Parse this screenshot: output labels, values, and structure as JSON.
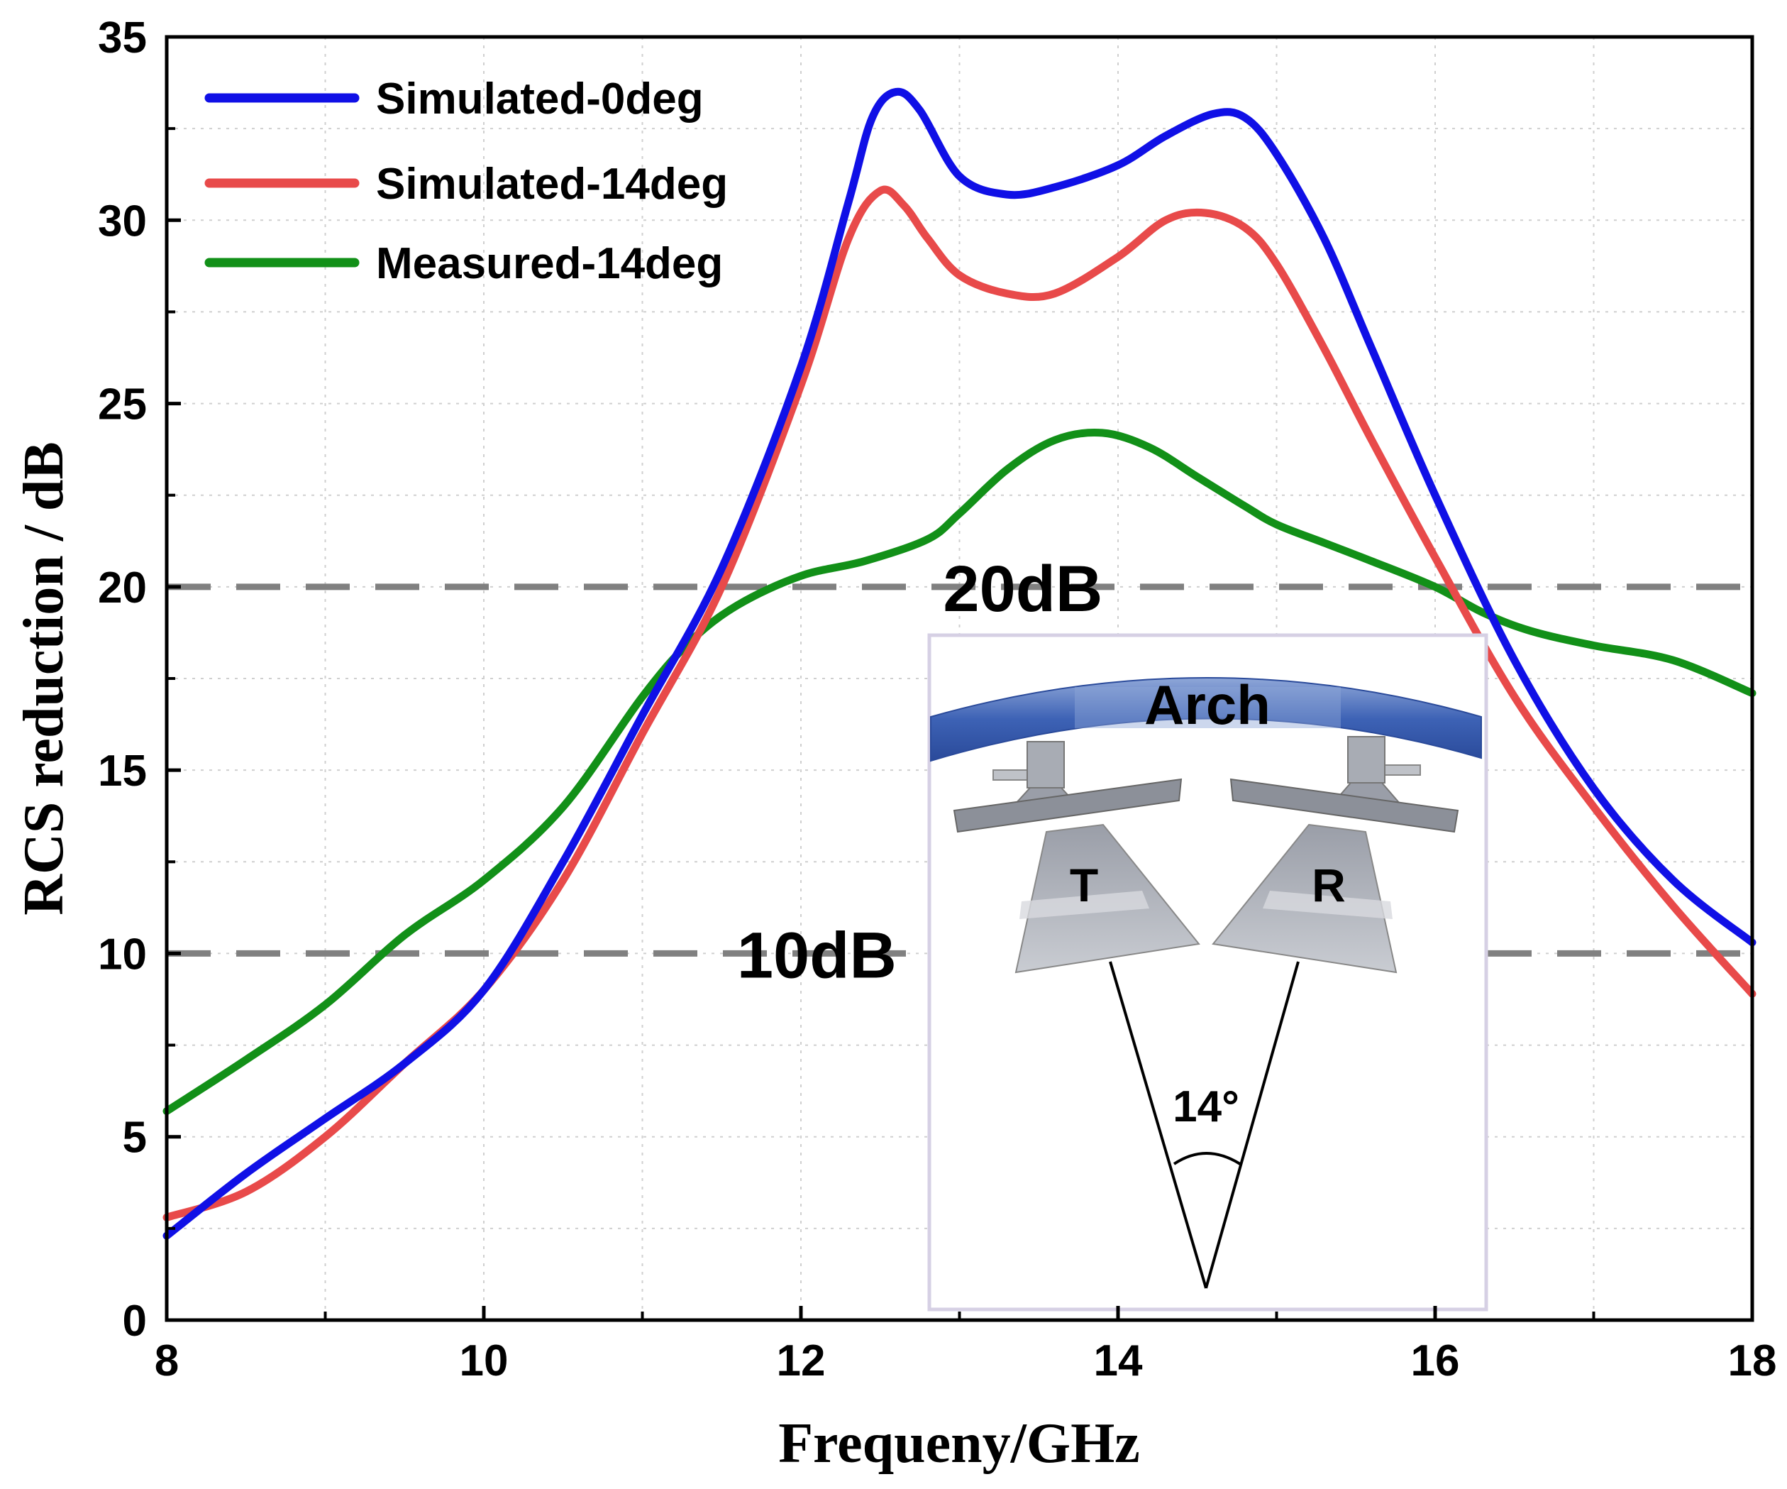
{
  "chart_data": {
    "type": "line",
    "xlabel": "Frequeny/GHz",
    "ylabel": "RCS reduction / dB",
    "xlim": [
      8,
      18
    ],
    "ylim": [
      0,
      35
    ],
    "xticks": [
      8,
      10,
      12,
      14,
      16,
      18
    ],
    "yticks": [
      0,
      5,
      10,
      15,
      20,
      25,
      30,
      35
    ],
    "grid": true,
    "legend_position": "top-left",
    "series": [
      {
        "name": "Simulated-0deg",
        "color": "#1010e6",
        "x": [
          8,
          8.5,
          9,
          9.5,
          10,
          10.5,
          11,
          11.5,
          12,
          12.3,
          12.45,
          12.6,
          12.75,
          13,
          13.3,
          13.6,
          14,
          14.3,
          14.6,
          14.8,
          15,
          15.3,
          15.6,
          16,
          16.5,
          17,
          17.5,
          18
        ],
        "y": [
          2.3,
          4,
          5.5,
          7,
          9,
          12.5,
          16.5,
          20.5,
          26,
          30.5,
          32.8,
          33.5,
          33,
          31.2,
          30.7,
          30.9,
          31.5,
          32.3,
          32.9,
          32.8,
          31.8,
          29.5,
          26.5,
          22.5,
          18,
          14.5,
          12,
          10.3
        ]
      },
      {
        "name": "Simulated-14deg",
        "color": "#e84a4a",
        "x": [
          8,
          8.5,
          9,
          9.5,
          10,
          10.5,
          11,
          11.5,
          12,
          12.3,
          12.5,
          12.65,
          12.8,
          13,
          13.3,
          13.6,
          14,
          14.3,
          14.55,
          14.8,
          15,
          15.3,
          15.6,
          16,
          16.5,
          17,
          17.5,
          18
        ],
        "y": [
          2.8,
          3.5,
          5,
          7,
          9,
          12,
          16,
          20,
          25.5,
          29.5,
          30.8,
          30.4,
          29.5,
          28.5,
          28,
          28,
          29,
          30,
          30.2,
          29.8,
          28.8,
          26.5,
          24,
          20.8,
          17,
          14,
          11.3,
          8.9
        ]
      },
      {
        "name": "Measured-14deg",
        "color": "#129018",
        "x": [
          8,
          8.5,
          9,
          9.5,
          10,
          10.5,
          11,
          11.3,
          11.6,
          12,
          12.4,
          12.8,
          13,
          13.3,
          13.6,
          13.9,
          14.2,
          14.5,
          14.8,
          15,
          15.3,
          15.6,
          16,
          16.3,
          16.6,
          17,
          17.5,
          18
        ],
        "y": [
          5.7,
          7.1,
          8.6,
          10.5,
          12,
          14,
          17,
          18.5,
          19.5,
          20.3,
          20.7,
          21.3,
          22,
          23.2,
          24,
          24.2,
          23.8,
          23,
          22.2,
          21.7,
          21.2,
          20.7,
          20,
          19.3,
          18.8,
          18.4,
          18,
          17.1
        ]
      }
    ],
    "reference_lines": [
      {
        "y": 20,
        "label": "20dB",
        "color": "#808080"
      },
      {
        "y": 10,
        "label": "10dB",
        "color": "#808080"
      }
    ],
    "inset": {
      "arch_label": "Arch",
      "transmitter_label": "T",
      "receiver_label": "R",
      "angle_label": "14°"
    }
  }
}
